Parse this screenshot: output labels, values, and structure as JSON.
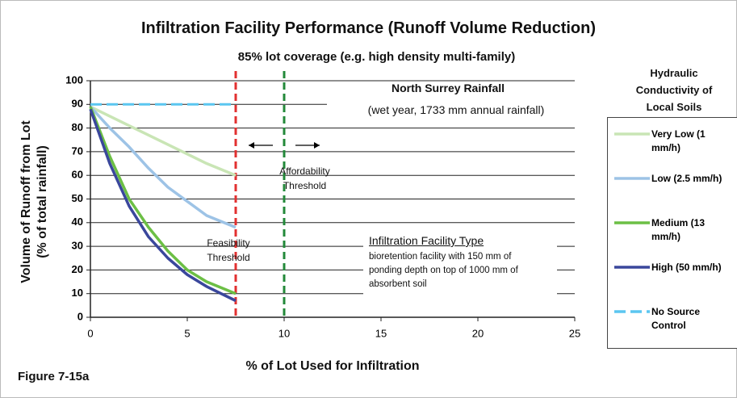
{
  "chart_data": {
    "type": "line",
    "title": "Infiltration Facility Performance (Runoff Volume Reduction)",
    "subtitle": "85% lot coverage (e.g. high density multi-family)",
    "xlabel": "% of Lot Used for Infiltration",
    "ylabel_lines": [
      "Volume of Runoff from Lot",
      "(% of total rainfall)"
    ],
    "legend_title": "Hydraulic Conductivity of Local Soils",
    "figure_label": "Figure 7-15a",
    "xlim": [
      0,
      25
    ],
    "xticks": [
      0,
      5,
      10,
      15,
      20,
      25
    ],
    "ylim": [
      0,
      100
    ],
    "yticks": [
      0,
      10,
      20,
      30,
      40,
      50,
      60,
      70,
      80,
      90,
      100
    ],
    "grid": true,
    "legend": "right",
    "series": [
      {
        "name": "Very Low (1 mm/h)",
        "color": "#c9e5b5",
        "x": [
          0,
          2,
          4,
          6,
          7.5
        ],
        "values": [
          89,
          81,
          73,
          65,
          60
        ]
      },
      {
        "name": "Low (2.5 mm/h)",
        "color": "#9dc3e6",
        "x": [
          0,
          1,
          2,
          3,
          4,
          5,
          6,
          7.5
        ],
        "values": [
          89,
          80,
          72,
          63,
          55,
          49,
          43,
          38
        ]
      },
      {
        "name": "Medium (13 mm/h)",
        "color": "#6cbf45",
        "x": [
          0,
          1,
          2,
          3,
          4,
          5,
          6,
          7.5
        ],
        "values": [
          89,
          68,
          50,
          38,
          28,
          20,
          15,
          10
        ]
      },
      {
        "name": "High (50 mm/h)",
        "color": "#3a479c",
        "x": [
          0,
          1,
          2,
          3,
          4,
          5,
          6,
          7.5
        ],
        "values": [
          88,
          65,
          47,
          34,
          25,
          18,
          13,
          7
        ]
      },
      {
        "name": "No Source Control",
        "color": "#5bc6f0",
        "dashed": true,
        "x": [
          0,
          7.5
        ],
        "values": [
          90,
          90
        ]
      }
    ],
    "reference_lines": [
      {
        "x": 7.5,
        "color": "#e23030"
      },
      {
        "x": 10,
        "color": "#23893a"
      }
    ],
    "annotations": {
      "rainfall_title": "North Surrey Rainfall",
      "rainfall_detail": "(wet year, 1733 mm annual rainfall)",
      "affordability": "Affordability Threshold",
      "feasibility": "Feasibility Threshold",
      "facility_title": "Infiltration Facility Type",
      "facility_detail": "bioretention facility with 150 mm of ponding depth on top of 1000 mm of absorbent soil"
    }
  }
}
